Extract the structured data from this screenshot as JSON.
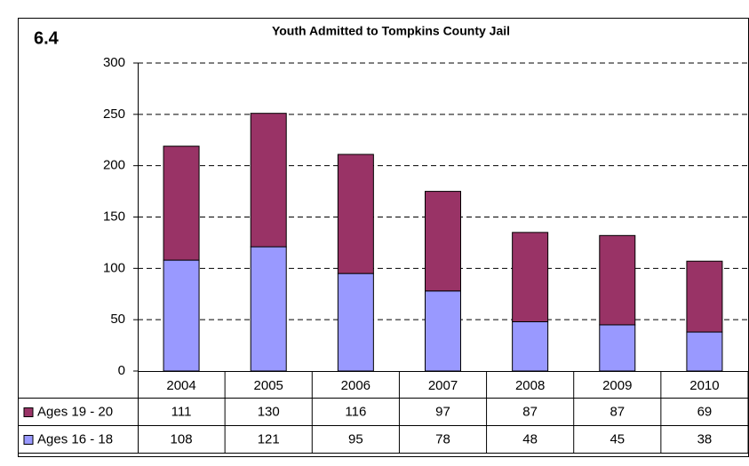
{
  "chart_data": {
    "type": "stacked_bar",
    "figure_number": "6.4",
    "title": "Youth Admitted to Tompkins County Jail",
    "categories": [
      "2004",
      "2005",
      "2006",
      "2007",
      "2008",
      "2009",
      "2010"
    ],
    "series": [
      {
        "name": "Ages 19 - 20",
        "color": "#993366",
        "values": [
          111,
          130,
          116,
          97,
          87,
          87,
          69
        ]
      },
      {
        "name": "Ages 16 - 18",
        "color": "#9999ff",
        "values": [
          108,
          121,
          95,
          78,
          48,
          45,
          38
        ]
      }
    ],
    "ylim": [
      0,
      300
    ],
    "yticks": [
      0,
      50,
      100,
      150,
      200,
      250,
      300
    ],
    "grid": true
  }
}
